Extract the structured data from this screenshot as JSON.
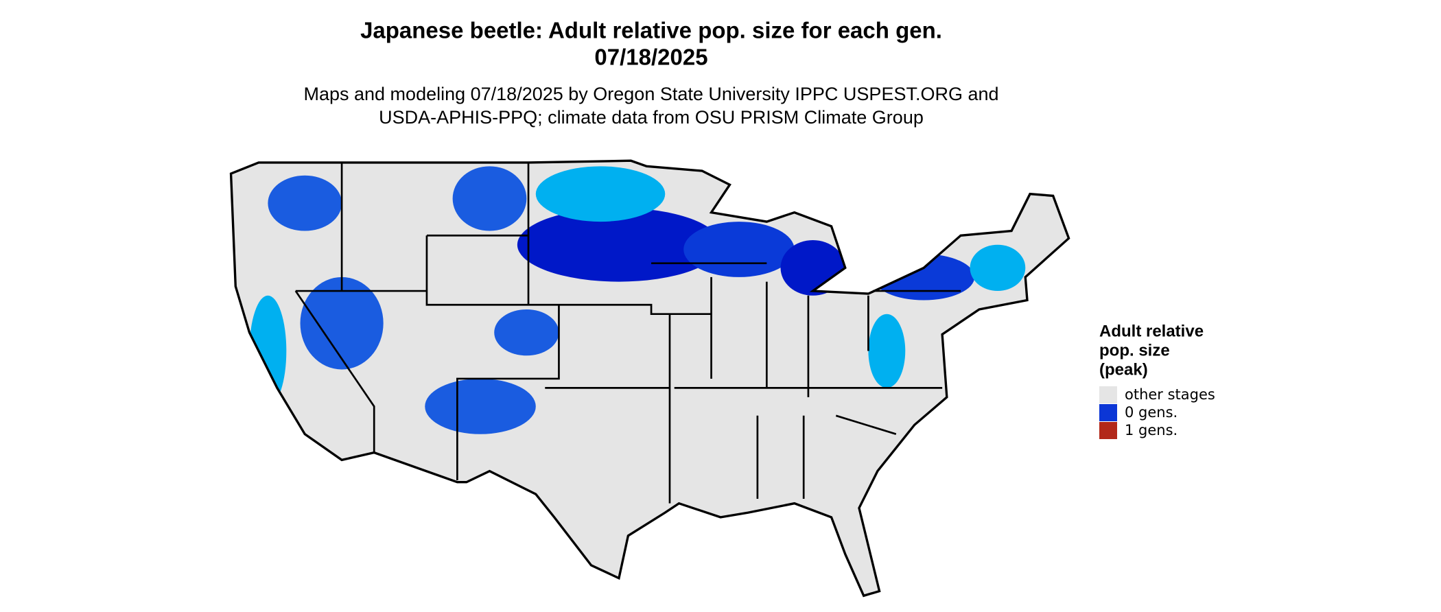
{
  "header": {
    "title": [
      "Japanese beetle: Adult relative pop. size for each gen.",
      "07/18/2025"
    ],
    "subtitle": [
      "Maps and modeling 07/18/2025 by Oregon State University IPPC USPEST.ORG and",
      "USDA-APHIS-PPQ; climate data from OSU PRISM Climate Group"
    ]
  },
  "legend": {
    "title": [
      "Adult relative",
      "pop. size",
      "(peak)"
    ],
    "items": [
      {
        "label": "other stages",
        "color": "#e5e5e5"
      },
      {
        "label": "0 gens.",
        "color": "#0b36d6"
      },
      {
        "label": "1 gens.",
        "color": "#b2281a"
      }
    ]
  }
}
